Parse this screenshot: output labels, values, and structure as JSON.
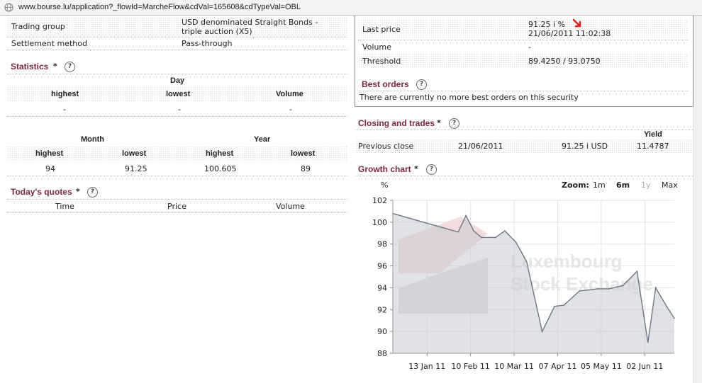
{
  "browser": {
    "url": "www.bourse.lu/application?_flowId=MarcheFlow&cdVal=165608&cdTypeVal=OBL"
  },
  "info": {
    "trading_group_label": "Trading group",
    "trading_group_value_line1": "USD denominated Straight Bonds -",
    "trading_group_value_line2": "triple auction (X5)",
    "settlement_label": "Settlement method",
    "settlement_value": "Pass-through"
  },
  "statistics": {
    "title": "Statistics",
    "star": "*",
    "day_header": "Day",
    "cols": [
      "highest",
      "lowest",
      "Volume"
    ],
    "day_values": [
      "-",
      "-",
      "-"
    ],
    "month_header": "Month",
    "year_header": "Year",
    "my_cols": [
      "highest",
      "lowest",
      "highest",
      "lowest"
    ],
    "my_values": [
      "94",
      "91.25",
      "100.605",
      "89"
    ]
  },
  "todays_quotes": {
    "title": "Today's quotes",
    "star": "*",
    "cols": [
      "Time",
      "Price",
      "Volume"
    ]
  },
  "price_box": {
    "last_price_label": "Last price",
    "last_price_value": "91.25 i  %",
    "last_price_time": "21/06/2011 11:02:38",
    "volume_label": "Volume",
    "volume_value": "-",
    "threshold_label": "Threshold",
    "threshold_value": "89.4250 / 93.0750",
    "best_orders_title": "Best orders",
    "best_orders_text": "There are currently no more best orders on this security"
  },
  "closing": {
    "title": "Closing and trades",
    "star": "*",
    "yield_header": "Yield",
    "label": "Previous close",
    "date": "21/06/2011",
    "price": "91.25 i USD",
    "yield": "11.4787"
  },
  "growth_chart": {
    "title": "Growth chart",
    "star": "*",
    "unit": "%",
    "zoom_label": "Zoom:",
    "zoom_options": [
      "1m",
      "6m",
      "1y",
      "Max"
    ],
    "zoom_selected": "6m",
    "zoom_disabled": "1y",
    "watermark_line1": "Luxembourg",
    "watermark_line2": "Stock Exchange"
  },
  "chart_data": {
    "type": "area",
    "title": "Growth chart",
    "ylabel": "%",
    "ylim": [
      88,
      102
    ],
    "yticks": [
      88,
      90,
      92,
      94,
      96,
      98,
      100,
      102
    ],
    "xlim": [
      "2010-12-22",
      "2011-06-21"
    ],
    "xticks": [
      {
        "label": "13 Jan 11",
        "date": "2011-01-13"
      },
      {
        "label": "10 Feb 11",
        "date": "2011-02-10"
      },
      {
        "label": "10 Mar 11",
        "date": "2011-03-10"
      },
      {
        "label": "07 Apr 11",
        "date": "2011-04-07"
      },
      {
        "label": "05 May 11",
        "date": "2011-05-05"
      },
      {
        "label": "02 Jun 11",
        "date": "2011-06-02"
      }
    ],
    "grid": true,
    "points": [
      {
        "x": "2010-12-22",
        "y": 100.8
      },
      {
        "x": "2011-02-02",
        "y": 99.1
      },
      {
        "x": "2011-02-07",
        "y": 100.6
      },
      {
        "x": "2011-02-12",
        "y": 99.2
      },
      {
        "x": "2011-02-17",
        "y": 98.6
      },
      {
        "x": "2011-02-26",
        "y": 98.6
      },
      {
        "x": "2011-03-04",
        "y": 99.2
      },
      {
        "x": "2011-03-11",
        "y": 98.2
      },
      {
        "x": "2011-03-18",
        "y": 96.4
      },
      {
        "x": "2011-03-28",
        "y": 90.0
      },
      {
        "x": "2011-04-05",
        "y": 92.3
      },
      {
        "x": "2011-04-11",
        "y": 92.4
      },
      {
        "x": "2011-04-21",
        "y": 93.7
      },
      {
        "x": "2011-05-03",
        "y": 93.9
      },
      {
        "x": "2011-05-10",
        "y": 93.9
      },
      {
        "x": "2011-05-19",
        "y": 94.2
      },
      {
        "x": "2011-05-28",
        "y": 95.5
      },
      {
        "x": "2011-06-04",
        "y": 89.0
      },
      {
        "x": "2011-06-09",
        "y": 94.0
      },
      {
        "x": "2011-06-16",
        "y": 92.3
      },
      {
        "x": "2011-06-21",
        "y": 91.2
      }
    ]
  },
  "colors": {
    "section_title": "#7a2741",
    "arrow": "#e02020",
    "chart_line": "#6e7686",
    "chart_fill": "#c9cbcf"
  }
}
